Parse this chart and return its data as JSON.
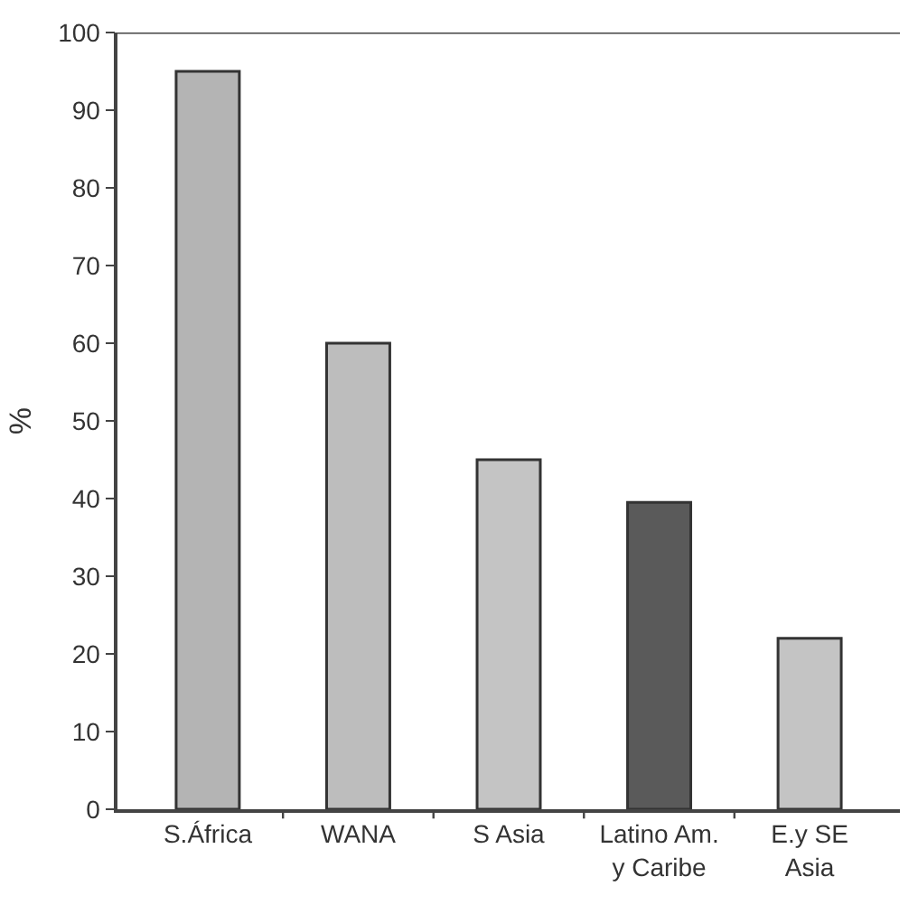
{
  "chart_data": {
    "type": "bar",
    "ylabel": "%",
    "categories": [
      "S.África",
      "WANA",
      "S Asia",
      "Latino Am.\ny Caribe",
      "E.y SE\nAsia"
    ],
    "values": [
      95,
      60,
      45,
      39.5,
      22
    ],
    "colors": [
      "#b4b4b4",
      "#bdbdbd",
      "#c4c4c4",
      "#5a5a5a",
      "#c4c4c4"
    ],
    "ylim": [
      0,
      100
    ],
    "yticks": [
      0,
      10,
      20,
      30,
      40,
      50,
      60,
      70,
      80,
      90,
      100
    ]
  }
}
